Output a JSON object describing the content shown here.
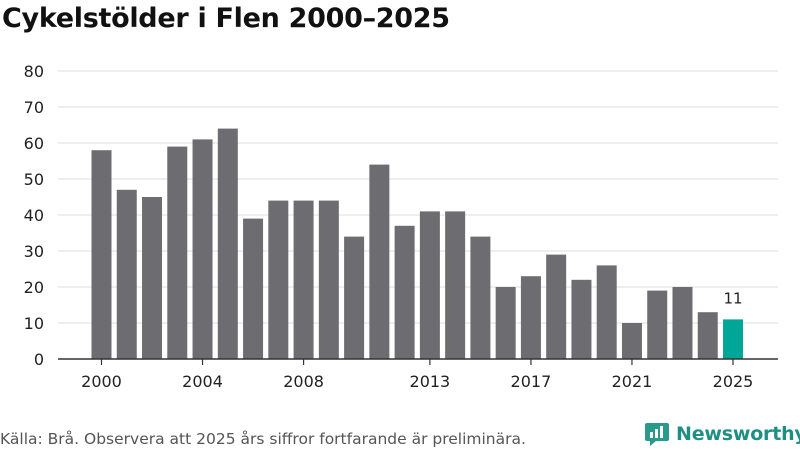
{
  "chart_data": {
    "type": "bar",
    "title": "Cykelstölder i Flen 2000–2025",
    "categories": [
      "2000",
      "2001",
      "2002",
      "2003",
      "2004",
      "2005",
      "2006",
      "2007",
      "2008",
      "2009",
      "2010",
      "2011",
      "2012",
      "2013",
      "2014",
      "2015",
      "2016",
      "2017",
      "2018",
      "2019",
      "2020",
      "2021",
      "2022",
      "2023",
      "2024",
      "2025"
    ],
    "values": [
      58,
      47,
      45,
      59,
      61,
      64,
      39,
      44,
      44,
      44,
      34,
      54,
      37,
      41,
      41,
      34,
      20,
      23,
      29,
      22,
      26,
      10,
      19,
      20,
      13,
      11
    ],
    "x_tick_labels": [
      "2000",
      "2004",
      "2008",
      "2013",
      "2017",
      "2021",
      "2025"
    ],
    "y_ticks": [
      0,
      10,
      20,
      30,
      40,
      50,
      60,
      70,
      80
    ],
    "ylim": [
      0,
      80
    ],
    "xlabel": "",
    "ylabel": "",
    "grid": true,
    "highlight_index": 25,
    "highlight_label": "11",
    "colors": {
      "bar": "#6d6c71",
      "highlight": "#00a698",
      "grid": "#dddddd",
      "axis": "#333333"
    }
  },
  "footer": {
    "source": "Källa: Brå. Observera att 2025 års siffror fortfarande är preliminära.",
    "brand": "Newsworthy",
    "brand_icon": "newsworthy-logo-icon"
  }
}
